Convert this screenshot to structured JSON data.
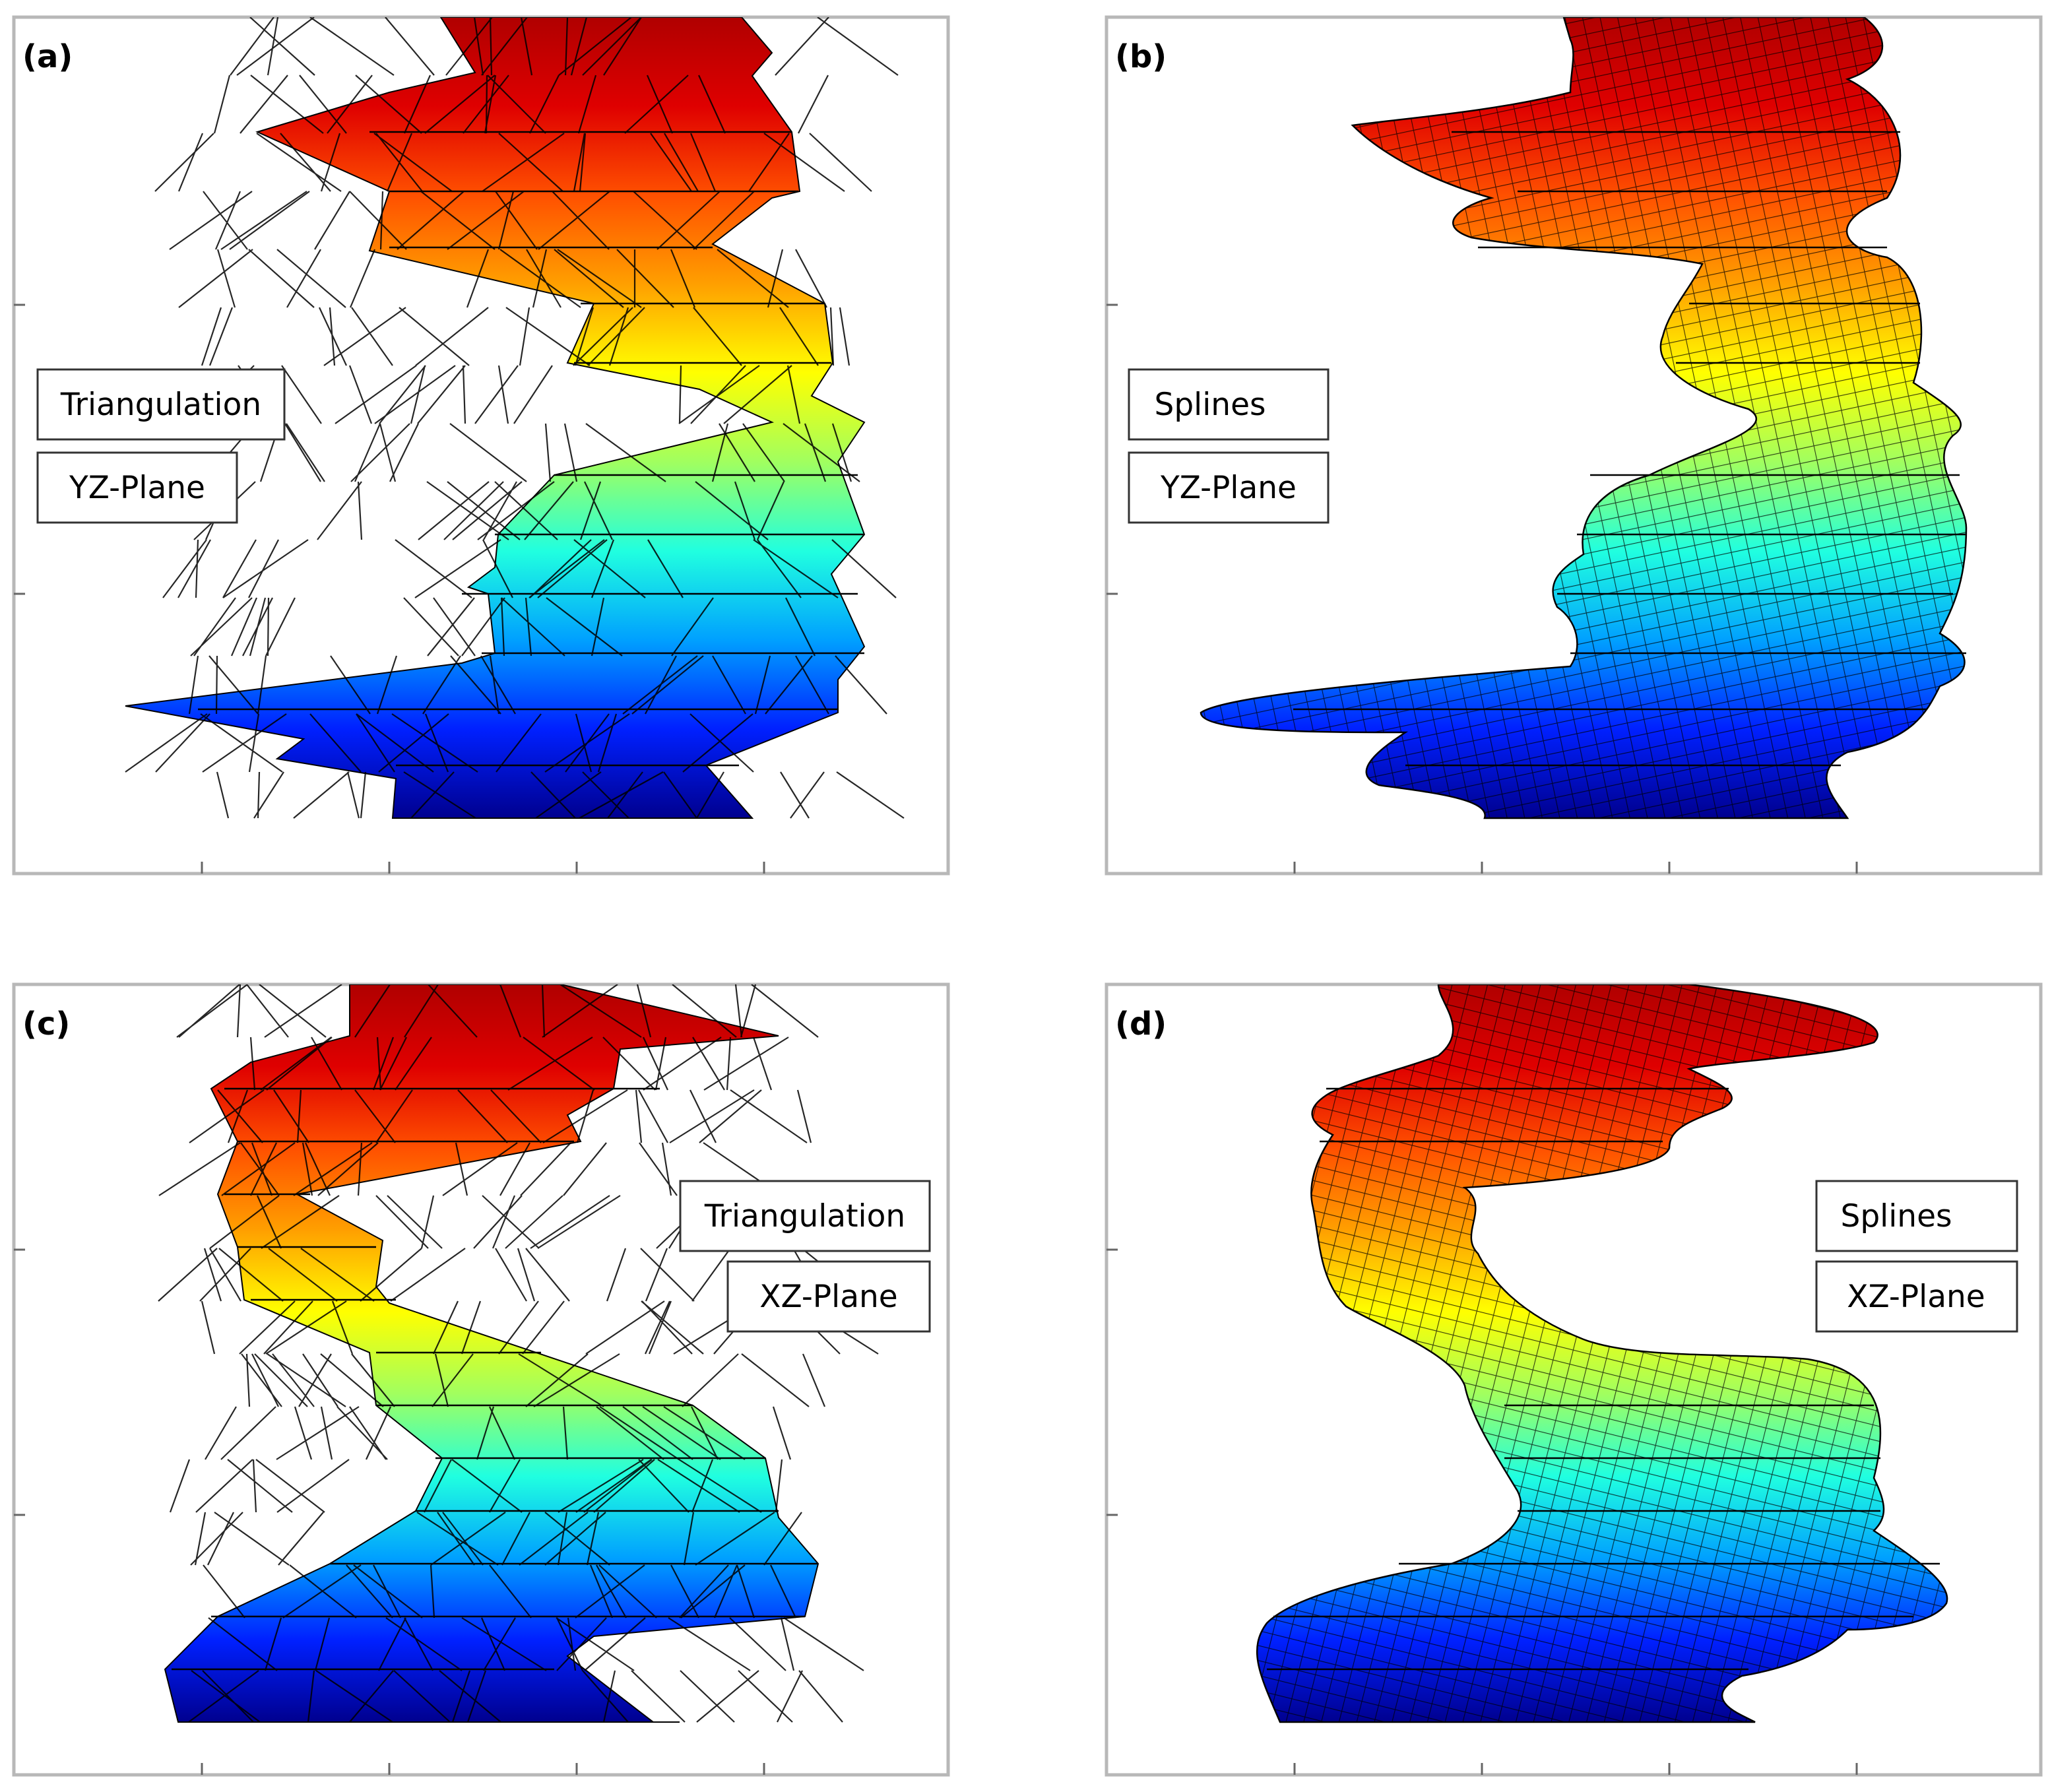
{
  "panels": [
    {
      "label": "(a)",
      "method": "Triangulation",
      "plane": "YZ-Plane"
    },
    {
      "label": "(b)",
      "method": "Splines",
      "plane": "YZ-Plane"
    },
    {
      "label": "(c)",
      "method": "Triangulation",
      "plane": "XZ-Plane"
    },
    {
      "label": "(d)",
      "method": "Splines",
      "plane": "XZ-Plane"
    }
  ],
  "colors": {
    "colormap": [
      "#00008f",
      "#0020ff",
      "#00a0ff",
      "#20ffe0",
      "#a0ff60",
      "#ffff00",
      "#ff9f00",
      "#ff5000",
      "#df0000",
      "#b00000"
    ],
    "mesh_lines": "#000000",
    "frame": "#b8b8b8"
  }
}
